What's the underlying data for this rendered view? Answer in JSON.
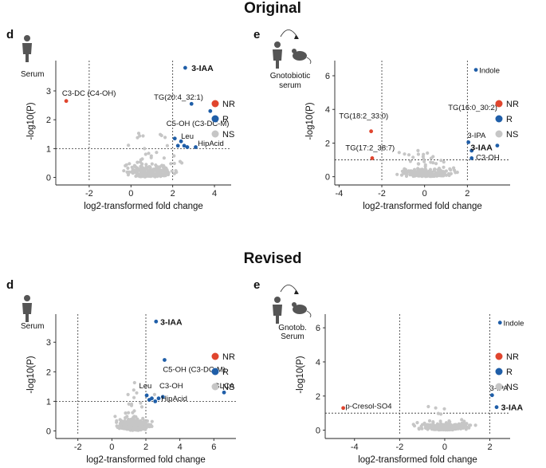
{
  "headings": {
    "original": "Original",
    "revised": "Revised"
  },
  "icon_labels": {
    "serum": "Serum",
    "gnotobiotic_serum_line1": "Gnotobiotic",
    "gnotobiotic_serum_line2": "serum",
    "gnotob_serum_line1": "Gnotob.",
    "gnotob_serum_line2": "Serum"
  },
  "colors": {
    "NR": "#e0452e",
    "R": "#1f5ea8",
    "NS": "#c6c6c6"
  },
  "chart_data": [
    {
      "id": "orig_d",
      "panel_label": "d",
      "type": "scatter",
      "xlabel": "log2-transformed fold change",
      "ylabel": "-log10(P)",
      "xlim": [
        -3.6,
        4.8
      ],
      "ylim": [
        -0.15,
        4.05
      ],
      "xticks": [
        -2,
        0,
        2,
        4
      ],
      "yticks": [
        0,
        1,
        2,
        3
      ],
      "vlines": [
        -2,
        2
      ],
      "hline": 1.0,
      "legend": [
        "NR",
        "R",
        "NS"
      ],
      "points_NR": [
        [
          -3.1,
          2.65
        ]
      ],
      "points_R": [
        [
          2.6,
          3.8
        ],
        [
          2.9,
          2.55
        ],
        [
          3.8,
          2.3
        ],
        [
          2.1,
          1.35
        ],
        [
          2.4,
          1.25
        ],
        [
          2.55,
          1.1
        ],
        [
          2.7,
          1.05
        ],
        [
          3.1,
          1.05
        ],
        [
          2.25,
          1.1
        ]
      ],
      "annotations": [
        {
          "text": "3-IAA",
          "x": 2.9,
          "y": 3.8,
          "bold": true
        },
        {
          "text": "C3-DC (C4-OH)",
          "x": -3.3,
          "y": 2.95,
          "bold": false
        },
        {
          "text": "TG(20:4_32:1)",
          "x": 1.1,
          "y": 2.8,
          "bold": false
        },
        {
          "text": "C5-OH (C3-DC-M)",
          "x": 1.7,
          "y": 1.9,
          "bold": false
        },
        {
          "text": "Leu",
          "x": 2.4,
          "y": 1.45,
          "bold": false
        },
        {
          "text": "HipAcid",
          "x": 3.2,
          "y": 1.2,
          "bold": false
        }
      ]
    },
    {
      "id": "orig_e",
      "panel_label": "e",
      "type": "scatter",
      "xlabel": "log2-transformed fold change",
      "ylabel": "-log10(P)",
      "xlim": [
        -4.2,
        4.0
      ],
      "ylim": [
        -0.3,
        6.9
      ],
      "xticks": [
        -4,
        -2,
        0,
        2
      ],
      "yticks": [
        0,
        2,
        4,
        6
      ],
      "vlines": [
        -2,
        2
      ],
      "hline": 1.0,
      "legend": [
        "NR",
        "R",
        "NS"
      ],
      "points_NR": [
        [
          -2.5,
          2.7
        ],
        [
          -2.45,
          1.1
        ]
      ],
      "points_R": [
        [
          2.4,
          6.35
        ],
        [
          2.05,
          2.05
        ],
        [
          2.2,
          1.55
        ],
        [
          2.2,
          1.1
        ],
        [
          3.4,
          1.85
        ]
      ],
      "annotations": [
        {
          "text": "Indole",
          "x": 2.55,
          "y": 6.35,
          "bold": false
        },
        {
          "text": "TG(18:2_33:0)",
          "x": -4.0,
          "y": 3.65,
          "bold": false
        },
        {
          "text": "TG(17:2_38:7)",
          "x": -3.7,
          "y": 1.75,
          "bold": false
        },
        {
          "text": "TG(16:0_30:2)",
          "x": 1.1,
          "y": 4.15,
          "bold": false
        },
        {
          "text": "3-IPA",
          "x": 2.0,
          "y": 2.5,
          "bold": false
        },
        {
          "text": "3-IAA",
          "x": 2.15,
          "y": 1.75,
          "bold": true
        },
        {
          "text": "C3-OH",
          "x": 2.4,
          "y": 1.2,
          "bold": false
        }
      ]
    },
    {
      "id": "rev_d",
      "panel_label": "d",
      "type": "scatter",
      "xlabel": "log2-transformed fold change",
      "ylabel": "-log10(P)",
      "xlim": [
        -3.3,
        7.3
      ],
      "ylim": [
        -0.15,
        3.95
      ],
      "xticks": [
        -2,
        0,
        2,
        4,
        6
      ],
      "yticks": [
        0,
        1,
        2,
        3
      ],
      "vlines": [
        -2,
        2
      ],
      "hline": 1.0,
      "legend": [
        "NR",
        "R",
        "NS"
      ],
      "points_NR": [],
      "points_R": [
        [
          2.6,
          3.7
        ],
        [
          3.1,
          2.4
        ],
        [
          6.6,
          1.3
        ],
        [
          2.05,
          1.2
        ],
        [
          2.35,
          1.1
        ],
        [
          2.55,
          1.0
        ],
        [
          2.75,
          1.1
        ],
        [
          3.0,
          1.15
        ],
        [
          2.2,
          1.05
        ]
      ],
      "annotations": [
        {
          "text": "3-IAA",
          "x": 2.85,
          "y": 3.7,
          "bold": true
        },
        {
          "text": "C5-OH (C3-DC-M)",
          "x": 3.0,
          "y": 2.1,
          "bold": false
        },
        {
          "text": "Leu",
          "x": 1.6,
          "y": 1.55,
          "bold": false
        },
        {
          "text": "C3-OH",
          "x": 2.8,
          "y": 1.55,
          "bold": false
        },
        {
          "text": "HipAcid",
          "x": 2.9,
          "y": 1.12,
          "bold": false
        },
        {
          "text": "GLCA",
          "x": 6.0,
          "y": 1.55,
          "bold": false
        }
      ]
    },
    {
      "id": "rev_e",
      "panel_label": "e",
      "type": "scatter",
      "xlabel": "log2-transformed fold change",
      "ylabel": "-log10(P)",
      "xlim": [
        -5.3,
        2.9
      ],
      "ylim": [
        -0.3,
        6.8
      ],
      "xticks": [
        -4,
        -2,
        0,
        2
      ],
      "yticks": [
        0,
        2,
        4,
        6
      ],
      "vlines": [
        -2,
        2
      ],
      "hline": 1.0,
      "legend": [
        "NR",
        "R",
        "NS"
      ],
      "points_NR": [
        [
          -4.5,
          1.3
        ]
      ],
      "points_R": [
        [
          2.45,
          6.3
        ],
        [
          2.1,
          2.05
        ],
        [
          2.3,
          1.35
        ]
      ],
      "annotations": [
        {
          "text": "Indole",
          "x": 2.6,
          "y": 6.3,
          "bold": false
        },
        {
          "text": "p-Cresol-SO4",
          "x": -4.4,
          "y": 1.45,
          "bold": false
        },
        {
          "text": "3-IPA",
          "x": 2.0,
          "y": 2.5,
          "bold": false
        },
        {
          "text": "3-IAA",
          "x": 2.5,
          "y": 1.35,
          "bold": true
        }
      ]
    }
  ]
}
